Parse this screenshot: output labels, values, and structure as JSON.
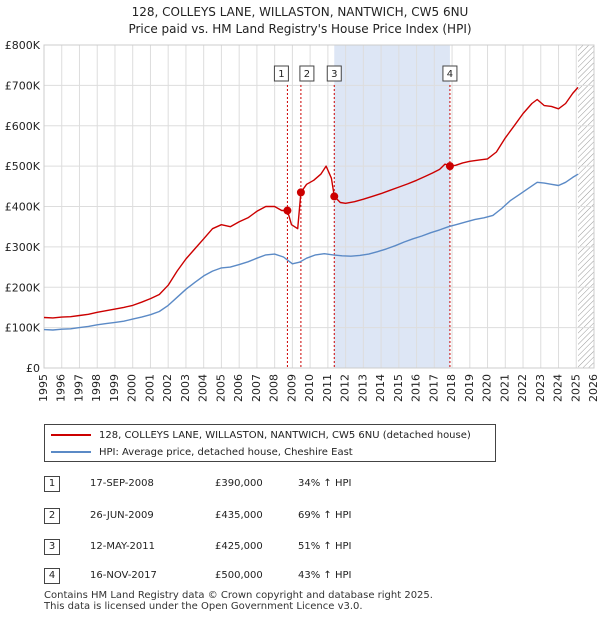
{
  "title_line1": "128, COLLEYS LANE, WILLASTON, NANTWICH, CW5 6NU",
  "title_line2": "Price paid vs. HM Land Registry's House Price Index (HPI)",
  "legend": {
    "property_label": "128, COLLEYS LANE, WILLASTON, NANTWICH, CW5 6NU (detached house)",
    "hpi_label": "HPI: Average price, detached house, Cheshire East"
  },
  "sales": [
    {
      "num": "1",
      "date": "17-SEP-2008",
      "price": "£390,000",
      "hpi": "34% ↑ HPI"
    },
    {
      "num": "2",
      "date": "26-JUN-2009",
      "price": "£435,000",
      "hpi": "69% ↑ HPI"
    },
    {
      "num": "3",
      "date": "12-MAY-2011",
      "price": "£425,000",
      "hpi": "51% ↑ HPI"
    },
    {
      "num": "4",
      "date": "16-NOV-2017",
      "price": "£500,000",
      "hpi": "43% ↑ HPI"
    }
  ],
  "footer": {
    "line1": "Contains HM Land Registry data © Crown copyright and database right 2025.",
    "line2": "This data is licensed under the Open Government Licence v3.0."
  },
  "colors": {
    "property": "#cc0000",
    "hpi": "#5b8ac6",
    "shade": "#dde6f5",
    "grid": "#dddddd",
    "vline": "#cc0000"
  },
  "chart_data": {
    "type": "line",
    "xlim": [
      1995,
      2026
    ],
    "ylim": [
      0,
      800000
    ],
    "x_ticks": [
      "1995",
      "1996",
      "1997",
      "1998",
      "1999",
      "2000",
      "2001",
      "2002",
      "2003",
      "2004",
      "2005",
      "2006",
      "2007",
      "2008",
      "2009",
      "2010",
      "2011",
      "2012",
      "2013",
      "2014",
      "2015",
      "2016",
      "2017",
      "2018",
      "2019",
      "2020",
      "2021",
      "2022",
      "2023",
      "2024",
      "2025",
      "2026"
    ],
    "y_ticks": [
      {
        "value": 0,
        "label": "£0"
      },
      {
        "value": 100000,
        "label": "£100K"
      },
      {
        "value": 200000,
        "label": "£200K"
      },
      {
        "value": 300000,
        "label": "£300K"
      },
      {
        "value": 400000,
        "label": "£400K"
      },
      {
        "value": 500000,
        "label": "£500K"
      },
      {
        "value": 600000,
        "label": "£600K"
      },
      {
        "value": 700000,
        "label": "£700K"
      },
      {
        "value": 800000,
        "label": "£800K"
      }
    ],
    "shaded_range": [
      2011.36,
      2017.88
    ],
    "future_hatch_from": 2025.1,
    "series": [
      {
        "name": "property",
        "points": [
          [
            1995.0,
            125000
          ],
          [
            1995.5,
            124000
          ],
          [
            1996.0,
            126000
          ],
          [
            1996.5,
            127000
          ],
          [
            1997.0,
            130000
          ],
          [
            1997.5,
            133000
          ],
          [
            1998.0,
            138000
          ],
          [
            1998.5,
            142000
          ],
          [
            1999.0,
            146000
          ],
          [
            1999.5,
            150000
          ],
          [
            2000.0,
            155000
          ],
          [
            2000.5,
            163000
          ],
          [
            2001.0,
            172000
          ],
          [
            2001.5,
            182000
          ],
          [
            2002.0,
            205000
          ],
          [
            2002.5,
            240000
          ],
          [
            2003.0,
            270000
          ],
          [
            2003.5,
            295000
          ],
          [
            2004.0,
            320000
          ],
          [
            2004.5,
            345000
          ],
          [
            2005.0,
            355000
          ],
          [
            2005.5,
            350000
          ],
          [
            2006.0,
            362000
          ],
          [
            2006.5,
            372000
          ],
          [
            2007.0,
            388000
          ],
          [
            2007.5,
            400000
          ],
          [
            2008.0,
            400000
          ],
          [
            2008.4,
            390000
          ],
          [
            2008.72,
            390000
          ],
          [
            2008.95,
            355000
          ],
          [
            2009.3,
            345000
          ],
          [
            2009.48,
            435000
          ],
          [
            2009.8,
            455000
          ],
          [
            2010.2,
            465000
          ],
          [
            2010.6,
            480000
          ],
          [
            2010.9,
            500000
          ],
          [
            2011.2,
            470000
          ],
          [
            2011.36,
            425000
          ],
          [
            2011.7,
            410000
          ],
          [
            2012.0,
            408000
          ],
          [
            2012.5,
            412000
          ],
          [
            2013.0,
            418000
          ],
          [
            2013.5,
            425000
          ],
          [
            2014.0,
            432000
          ],
          [
            2014.5,
            440000
          ],
          [
            2015.0,
            448000
          ],
          [
            2015.5,
            456000
          ],
          [
            2016.0,
            465000
          ],
          [
            2016.5,
            475000
          ],
          [
            2016.9,
            483000
          ],
          [
            2017.3,
            492000
          ],
          [
            2017.6,
            505000
          ],
          [
            2017.88,
            500000
          ],
          [
            2018.2,
            502000
          ],
          [
            2018.6,
            508000
          ],
          [
            2019.0,
            512000
          ],
          [
            2019.5,
            515000
          ],
          [
            2020.0,
            518000
          ],
          [
            2020.5,
            535000
          ],
          [
            2021.0,
            570000
          ],
          [
            2021.5,
            600000
          ],
          [
            2022.0,
            630000
          ],
          [
            2022.5,
            655000
          ],
          [
            2022.8,
            665000
          ],
          [
            2023.2,
            650000
          ],
          [
            2023.6,
            648000
          ],
          [
            2024.0,
            642000
          ],
          [
            2024.4,
            655000
          ],
          [
            2024.8,
            680000
          ],
          [
            2025.1,
            695000
          ]
        ]
      },
      {
        "name": "hpi",
        "points": [
          [
            1995.0,
            95000
          ],
          [
            1995.5,
            94000
          ],
          [
            1996.0,
            96000
          ],
          [
            1996.5,
            97000
          ],
          [
            1997.0,
            100000
          ],
          [
            1997.5,
            103000
          ],
          [
            1998.0,
            107000
          ],
          [
            1998.5,
            110000
          ],
          [
            1999.0,
            113000
          ],
          [
            1999.5,
            116000
          ],
          [
            2000.0,
            121000
          ],
          [
            2000.5,
            126000
          ],
          [
            2001.0,
            132000
          ],
          [
            2001.5,
            140000
          ],
          [
            2002.0,
            155000
          ],
          [
            2002.5,
            175000
          ],
          [
            2003.0,
            195000
          ],
          [
            2003.5,
            212000
          ],
          [
            2004.0,
            228000
          ],
          [
            2004.5,
            240000
          ],
          [
            2005.0,
            248000
          ],
          [
            2005.5,
            250000
          ],
          [
            2006.0,
            256000
          ],
          [
            2006.5,
            263000
          ],
          [
            2007.0,
            272000
          ],
          [
            2007.5,
            280000
          ],
          [
            2008.0,
            282000
          ],
          [
            2008.5,
            275000
          ],
          [
            2009.0,
            258000
          ],
          [
            2009.4,
            262000
          ],
          [
            2009.8,
            272000
          ],
          [
            2010.3,
            280000
          ],
          [
            2010.8,
            283000
          ],
          [
            2011.3,
            280000
          ],
          [
            2011.8,
            278000
          ],
          [
            2012.3,
            277000
          ],
          [
            2012.8,
            279000
          ],
          [
            2013.3,
            282000
          ],
          [
            2013.8,
            288000
          ],
          [
            2014.3,
            295000
          ],
          [
            2014.8,
            303000
          ],
          [
            2015.3,
            312000
          ],
          [
            2015.8,
            320000
          ],
          [
            2016.3,
            327000
          ],
          [
            2016.8,
            335000
          ],
          [
            2017.3,
            342000
          ],
          [
            2017.8,
            350000
          ],
          [
            2018.3,
            356000
          ],
          [
            2018.8,
            362000
          ],
          [
            2019.3,
            368000
          ],
          [
            2019.8,
            372000
          ],
          [
            2020.3,
            378000
          ],
          [
            2020.8,
            395000
          ],
          [
            2021.3,
            415000
          ],
          [
            2021.8,
            430000
          ],
          [
            2022.3,
            445000
          ],
          [
            2022.8,
            460000
          ],
          [
            2023.2,
            458000
          ],
          [
            2023.6,
            455000
          ],
          [
            2024.0,
            452000
          ],
          [
            2024.4,
            460000
          ],
          [
            2024.8,
            472000
          ],
          [
            2025.1,
            480000
          ]
        ]
      }
    ],
    "markers": [
      {
        "label": "1",
        "x": 2008.72,
        "y": 390000
      },
      {
        "label": "2",
        "x": 2009.48,
        "y": 435000
      },
      {
        "label": "3",
        "x": 2011.36,
        "y": 425000
      },
      {
        "label": "4",
        "x": 2017.88,
        "y": 500000
      }
    ]
  }
}
